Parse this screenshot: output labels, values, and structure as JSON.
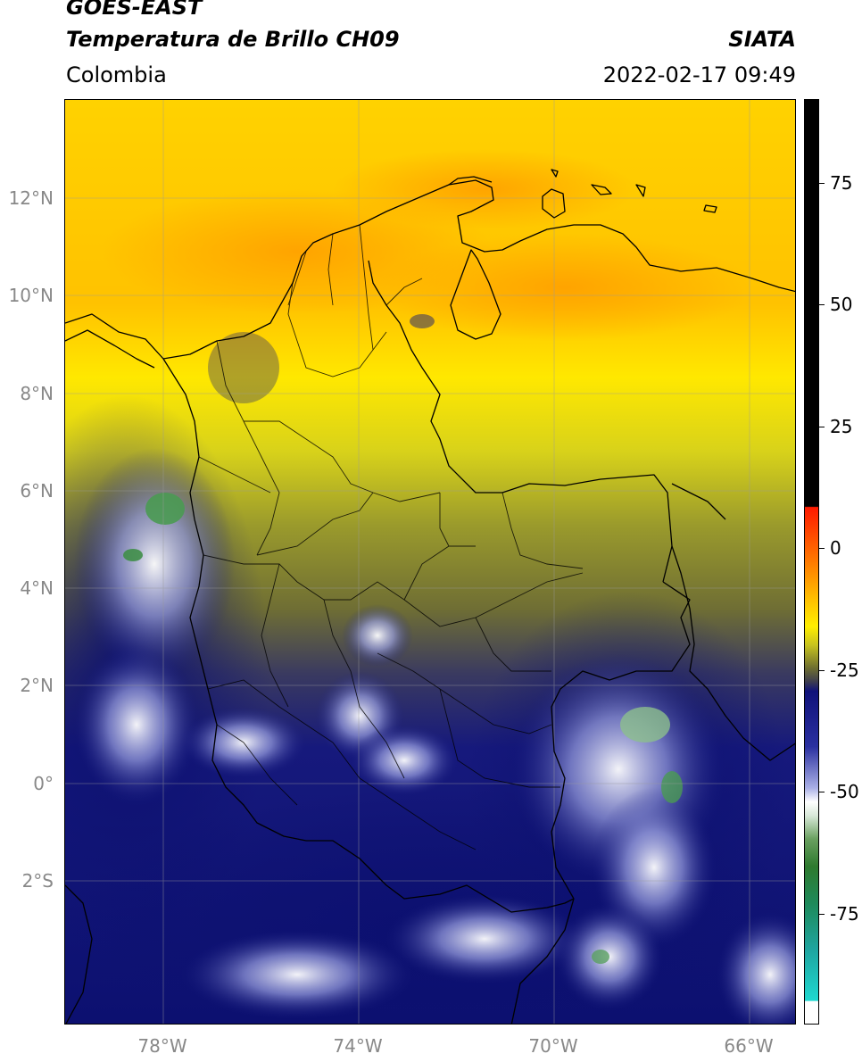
{
  "header": {
    "satellite": "GOES-EAST",
    "product": "Temperatura de Brillo CH09",
    "brand": "SIATA",
    "region": "Colombia",
    "datetime": "2022-02-17 09:49"
  },
  "map": {
    "lat_ticks": [
      "12°N",
      "10°N",
      "8°N",
      "6°N",
      "4°N",
      "2°N",
      "0°",
      "2°S"
    ],
    "lon_ticks": [
      "78°W",
      "74°W",
      "70°W",
      "66°W"
    ]
  },
  "colorbar": {
    "labels": [
      "75",
      "50",
      "25",
      "0",
      "-25",
      "-50",
      "-75"
    ],
    "colors": {
      "black": "#000000",
      "red": "#ff2a00",
      "orange": "#ffa600",
      "yellow": "#ffee00",
      "olive": "#6e6e30",
      "navy": "#10127a",
      "white": "#ffffff",
      "green": "#2e8a2e",
      "cyan": "#1fd1c8"
    }
  }
}
